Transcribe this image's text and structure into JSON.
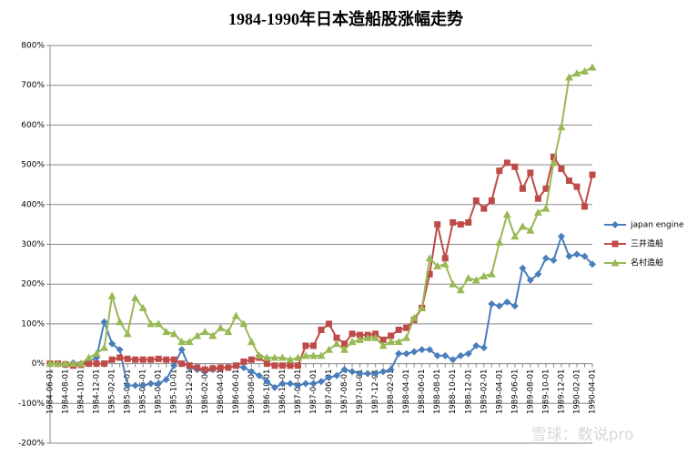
{
  "chart_data": {
    "type": "line",
    "title": "1984-1990年日本造船股涨幅走势",
    "watermark": "雪球：数说pro",
    "categories": [
      "1984-06-01",
      null,
      "1984-08-01",
      null,
      "1984-10-01",
      null,
      "1984-12-01",
      null,
      "1985-02-01",
      null,
      "1985-04-01",
      null,
      "1985-06-01",
      null,
      "1985-08-01",
      null,
      "1985-10-01",
      null,
      "1985-12-01",
      null,
      "1986-02-01",
      null,
      "1986-04-01",
      null,
      "1986-06-01",
      null,
      "1986-08-01",
      null,
      "1986-10-01",
      null,
      "1986-12-01",
      null,
      "1987-02-01",
      null,
      "1987-04-01",
      null,
      "1987-06-01",
      null,
      "1987-08-01",
      null,
      "1987-10-01",
      null,
      "1987-12-01",
      null,
      "1988-02-01",
      null,
      "1988-04-01",
      null,
      "1988-06-01",
      null,
      "1988-08-01",
      null,
      "1988-10-01",
      null,
      "1988-12-01",
      null,
      "1989-02-01",
      null,
      "1989-04-01",
      null,
      "1989-06-01",
      null,
      "1989-08-01",
      null,
      "1989-10-01",
      null,
      "1989-12-01",
      null,
      "1990-02-01",
      null,
      "1990-04-01"
    ],
    "series": [
      {
        "name": "japan engine",
        "color": "#4a7ebb",
        "marker": "diamond",
        "values": [
          0,
          0,
          -3,
          2,
          0,
          5,
          15,
          105,
          50,
          35,
          -55,
          -55,
          -55,
          -50,
          -50,
          -40,
          -5,
          35,
          -10,
          -15,
          -20,
          -15,
          -10,
          -10,
          -5,
          -10,
          -20,
          -30,
          -45,
          -60,
          -50,
          -50,
          -55,
          -50,
          -50,
          -45,
          -35,
          -30,
          -15,
          -20,
          -25,
          -25,
          -25,
          -20,
          -15,
          25,
          25,
          30,
          35,
          35,
          20,
          20,
          10,
          20,
          25,
          45,
          40,
          150,
          145,
          155,
          145,
          240,
          210,
          225,
          265,
          260,
          320,
          270,
          275,
          270,
          250
        ]
      },
      {
        "name": "三井造船",
        "color": "#be4b48",
        "marker": "square",
        "values": [
          0,
          0,
          -2,
          -5,
          -3,
          0,
          0,
          0,
          10,
          15,
          12,
          10,
          10,
          10,
          12,
          10,
          10,
          0,
          -5,
          -10,
          -15,
          -12,
          -10,
          -10,
          -5,
          5,
          10,
          15,
          0,
          -5,
          -5,
          -5,
          -5,
          45,
          45,
          85,
          100,
          65,
          50,
          75,
          72,
          72,
          75,
          60,
          70,
          85,
          90,
          110,
          140,
          225,
          350,
          265,
          355,
          350,
          355,
          410,
          390,
          410,
          485,
          505,
          495,
          440,
          480,
          415,
          440,
          520,
          490,
          460,
          445,
          395,
          475
        ]
      },
      {
        "name": "名村造船",
        "color": "#98b954",
        "marker": "triangle",
        "values": [
          0,
          0,
          0,
          0,
          0,
          15,
          25,
          40,
          170,
          105,
          75,
          165,
          140,
          100,
          100,
          80,
          75,
          55,
          55,
          70,
          80,
          70,
          90,
          80,
          120,
          100,
          55,
          20,
          15,
          15,
          15,
          10,
          15,
          20,
          20,
          20,
          35,
          50,
          35,
          55,
          60,
          65,
          65,
          45,
          55,
          55,
          65,
          115,
          140,
          265,
          245,
          250,
          200,
          185,
          215,
          210,
          220,
          225,
          305,
          375,
          320,
          345,
          335,
          380,
          390,
          505,
          595,
          720,
          730,
          735,
          745
        ]
      }
    ],
    "ylim": [
      -200,
      800
    ],
    "yticks": [
      {
        "value": -200,
        "label": "-200%"
      },
      {
        "value": -100,
        "label": "-100%"
      },
      {
        "value": 0,
        "label": "0%"
      },
      {
        "value": 100,
        "label": "100%"
      },
      {
        "value": 200,
        "label": "200%"
      },
      {
        "value": 300,
        "label": "300%"
      },
      {
        "value": 400,
        "label": "400%"
      },
      {
        "value": 500,
        "label": "500%"
      },
      {
        "value": 600,
        "label": "600%"
      },
      {
        "value": 700,
        "label": "700%"
      },
      {
        "value": 800,
        "label": "800%"
      }
    ],
    "legend": "right"
  }
}
